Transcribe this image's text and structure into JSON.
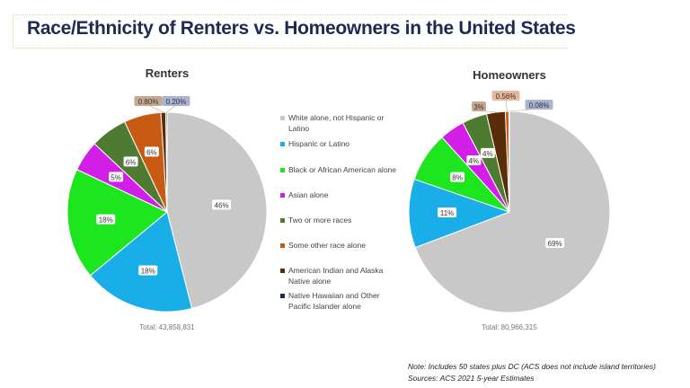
{
  "title": "Race/Ethnicity of Renters vs. Homeowners in the United States",
  "legend": [
    {
      "label": "White alone, not Hispanic or Latino",
      "color": "#c8c8c8"
    },
    {
      "label": "Hispanic or Latino",
      "color": "#19aee8"
    },
    {
      "label": "Black or African American alone",
      "color": "#1ee61e"
    },
    {
      "label": "Asian alone",
      "color": "#d21ee6"
    },
    {
      "label": "Two or more races",
      "color": "#4e7a32"
    },
    {
      "label": "Some other race alone",
      "color": "#c85a14"
    },
    {
      "label": "American Indian and Alaska Native alone",
      "color": "#5a2d0a"
    },
    {
      "label": "Native Hawaiian and Other Pacific Islander alone",
      "color": "#1f2a52"
    }
  ],
  "chart_data": [
    {
      "type": "pie",
      "title": "Renters",
      "total_label": "Total: 43,858,831",
      "categories": [
        "White alone, not Hispanic or Latino",
        "Hispanic or Latino",
        "Black or African American alone",
        "Asian alone",
        "Two or more races",
        "Some other race alone",
        "American Indian and Alaska Native alone",
        "Native Hawaiian and Other Pacific Islander alone"
      ],
      "values": [
        46,
        18,
        18,
        5,
        6,
        6,
        0.8,
        0.2
      ],
      "labels": [
        "46%",
        "18%",
        "18%",
        "5%",
        "6%",
        "6%",
        "0.80%",
        "0.20%"
      ],
      "colors": [
        "#c8c8c8",
        "#19aee8",
        "#1ee61e",
        "#d21ee6",
        "#4e7a32",
        "#c85a14",
        "#5a2d0a",
        "#1f2a52"
      ]
    },
    {
      "type": "pie",
      "title": "Homeowners",
      "total_label": "Total: 80,966,315",
      "categories": [
        "White alone, not Hispanic or Latino",
        "Hispanic or Latino",
        "Black or African American alone",
        "Asian alone",
        "Two or more races",
        "Some other race alone",
        "American Indian and Alaska Native alone",
        "Native Hawaiian and Other Pacific Islander alone"
      ],
      "values": [
        69,
        11,
        8,
        4,
        4,
        3,
        0.56,
        0.08
      ],
      "labels": [
        "69%",
        "11%",
        "8%",
        "4%",
        "4%",
        "3%",
        "0.56%",
        "0.08%"
      ],
      "colors": [
        "#c8c8c8",
        "#19aee8",
        "#1ee61e",
        "#d21ee6",
        "#4e7a32",
        "#5a2d0a",
        "#c85a14",
        "#1f2a52"
      ]
    }
  ],
  "note": {
    "line1": "Note: Includes 50 states plus DC (ACS does not include island territories)",
    "line2": "Sources: ACS 2021 5-year Estimates"
  }
}
